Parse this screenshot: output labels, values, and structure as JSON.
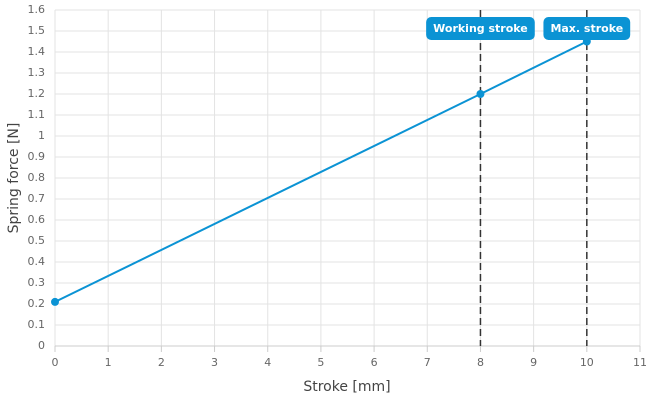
{
  "chart_data": {
    "type": "line",
    "x_label": "Stroke [mm]",
    "y_label": "Spring force [N]",
    "x": [
      0,
      8,
      10
    ],
    "values": [
      0.21,
      1.2,
      1.45
    ],
    "color": "#0b93d4",
    "xlim": [
      0,
      11
    ],
    "xticks": [
      0,
      1,
      2,
      3,
      4,
      5,
      6,
      7,
      8,
      9,
      10,
      11
    ],
    "ylim": [
      0,
      1.6
    ],
    "yticks": [
      0,
      0.1,
      0.2,
      0.3,
      0.4,
      0.5,
      0.6,
      0.7,
      0.8,
      0.9,
      1,
      1.1,
      1.2,
      1.3,
      1.4,
      1.5,
      1.6
    ],
    "grid": true,
    "annotations": [
      {
        "x": 8,
        "label": "Working stroke"
      },
      {
        "x": 10,
        "label": "Max. stroke"
      }
    ]
  }
}
